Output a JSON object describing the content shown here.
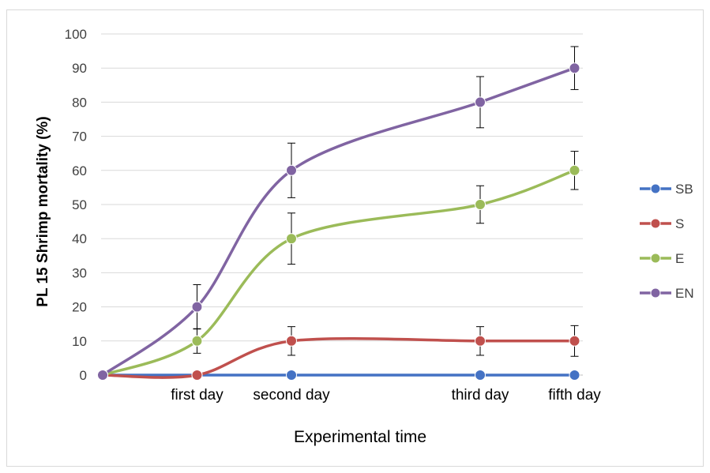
{
  "chart_data": {
    "type": "line",
    "xlabel": "Experimental time",
    "ylabel": "PL 15 Shrimp mortality (%)",
    "x_positions": [
      0,
      1,
      2,
      4,
      5
    ],
    "categories": [
      "",
      "first day",
      "second day",
      "third day",
      "fifth day"
    ],
    "ylim": [
      0,
      100
    ],
    "yticks": [
      0,
      10,
      20,
      30,
      40,
      50,
      60,
      70,
      80,
      90,
      100
    ],
    "grid": true,
    "legend_position": "right",
    "series": [
      {
        "name": "SB",
        "color": "#4472C4",
        "values": [
          0,
          0,
          0,
          0,
          0
        ],
        "errors": [
          0,
          0,
          0,
          0,
          0
        ]
      },
      {
        "name": "S",
        "color": "#C0504D",
        "values": [
          0,
          0,
          10,
          10,
          10
        ],
        "errors": [
          0,
          0,
          4.2,
          4.2,
          4.5
        ]
      },
      {
        "name": "E",
        "color": "#9BBB59",
        "values": [
          0,
          10,
          40,
          50,
          60
        ],
        "errors": [
          0,
          3.6,
          7.5,
          5.5,
          5.6
        ]
      },
      {
        "name": "EN",
        "color": "#8064A2",
        "values": [
          0,
          20,
          60,
          80,
          90
        ],
        "errors": [
          0,
          6.5,
          8,
          7.5,
          6.3
        ]
      }
    ]
  }
}
